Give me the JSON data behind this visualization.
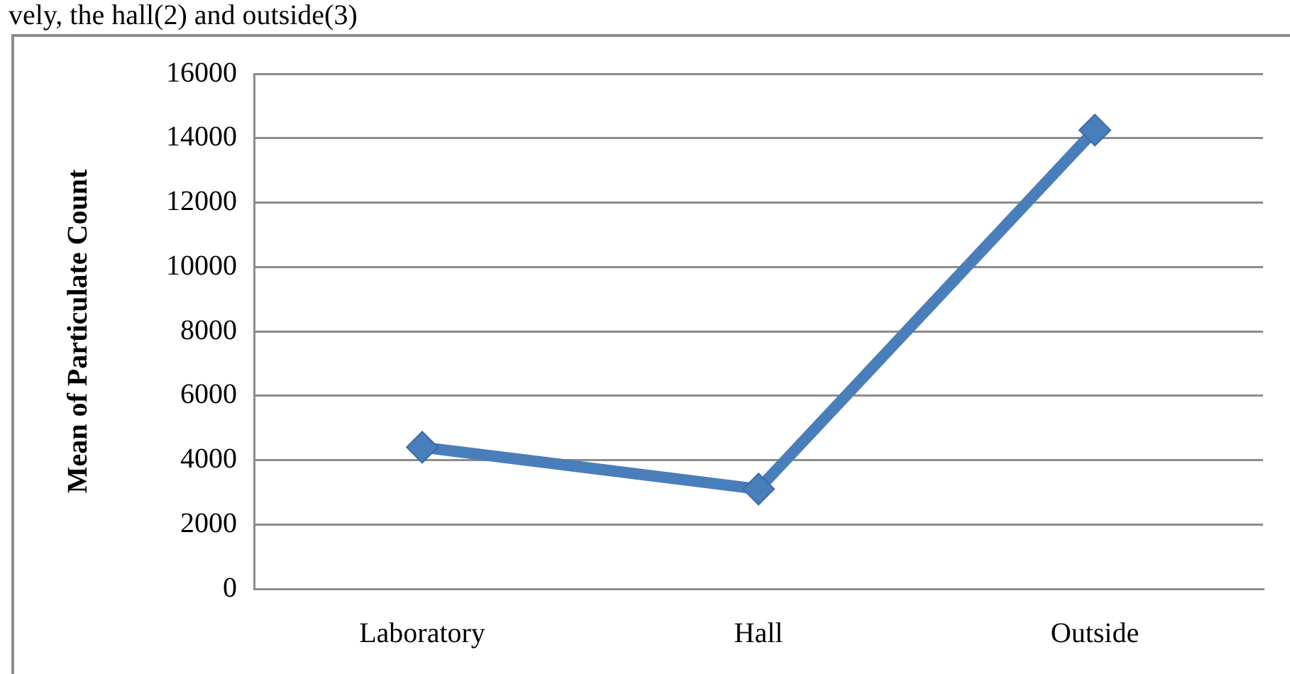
{
  "chart_data": {
    "type": "line",
    "annotations": [
      "vely, the hall(2) and outside(3)"
    ],
    "ylabel": "Mean of Particulate Count",
    "categories": [
      "Laboratory",
      "Hall",
      "Outside"
    ],
    "series": [
      {
        "color": "#4a7ebb",
        "values": [
          4400,
          3100,
          14250
        ]
      }
    ],
    "ylim": [
      0,
      16000
    ],
    "yticks": [
      0,
      2000,
      4000,
      6000,
      8000,
      10000,
      12000,
      14000,
      16000
    ],
    "grid": "y",
    "legend": false,
    "marker": "diamond",
    "line_style": "solid"
  }
}
